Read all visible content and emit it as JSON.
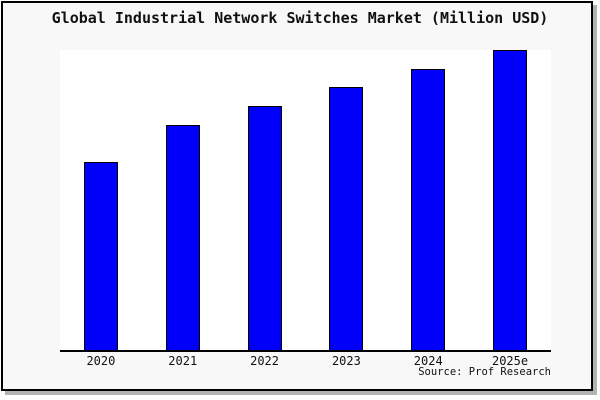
{
  "title": "Global Industrial Network Switches Market (Million USD)",
  "source_credit": "Source: Prof Research",
  "colors": {
    "bar_fill": "#0000fa",
    "bar_border": "#000000",
    "plot_background": "#ffffff",
    "frame_background": "#f8f8f8",
    "frame_border": "#000000",
    "frame_shadow": "#b3b3b3",
    "axis_line": "#000000",
    "text": "#111111"
  },
  "chart_data": {
    "type": "bar",
    "title": "Global Industrial Network Switches Market (Million USD)",
    "categories": [
      "2020",
      "2021",
      "2022",
      "2023",
      "2024",
      "2025e"
    ],
    "values": [
      62.7,
      75.0,
      81.3,
      87.7,
      93.7,
      100.0
    ],
    "values_unit": "percent of tallest bar (no numeric y-axis shown in chart)",
    "xlabel": "",
    "ylabel": "",
    "ylim": [
      0,
      100
    ],
    "grid": false,
    "legend": "none",
    "bar_color": "#0000fa",
    "bar_border_color": "#000000",
    "annotations": [
      "Source: Prof Research"
    ]
  }
}
